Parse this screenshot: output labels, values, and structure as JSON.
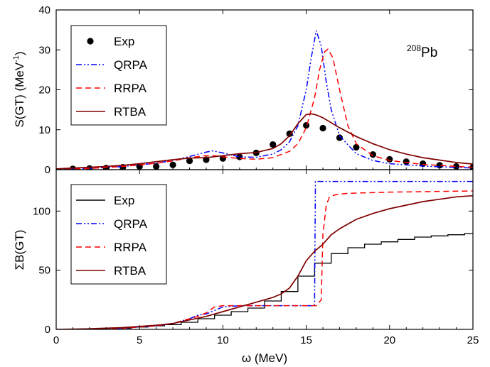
{
  "chart_data": [
    {
      "type": "line",
      "panel": "top",
      "xlim": [
        0,
        25
      ],
      "ylim": [
        0,
        40
      ],
      "x_ticks": [
        0,
        5,
        10,
        15,
        20,
        25
      ],
      "y_ticks": [
        0,
        10,
        20,
        30,
        40
      ],
      "ylabel": "S(GT) (MeV",
      "ylabel_sup": "-1",
      "ylabel_end": ")",
      "annotation": {
        "sup": "208",
        "text": "Pb"
      },
      "legend": {
        "position": "top-left"
      },
      "series": [
        {
          "name": "Exp",
          "style": "markers",
          "color": "#000000",
          "x": [
            1,
            2,
            3,
            4,
            5,
            6,
            7,
            8,
            9,
            10,
            11,
            12,
            13,
            14,
            15,
            16,
            17,
            18,
            19,
            20,
            21,
            22,
            23,
            24,
            25
          ],
          "y": [
            0.2,
            0.3,
            0.4,
            0.6,
            0.8,
            0.8,
            1.2,
            2.2,
            2.5,
            2.8,
            3.2,
            4.2,
            6.3,
            9.0,
            11.1,
            10.4,
            8.0,
            5.6,
            3.8,
            2.6,
            2.0,
            1.5,
            1.1,
            0.8,
            0.6
          ]
        },
        {
          "name": "QRPA",
          "style": "dash-dot-dot",
          "color": "#0000ff",
          "x": [
            0,
            2,
            4,
            6,
            7,
            8,
            9,
            9.4,
            10,
            11,
            12,
            13,
            13.5,
            14,
            14.5,
            15,
            15.3,
            15.6,
            15.9,
            16.2,
            16.5,
            17,
            18,
            19,
            20,
            22,
            25
          ],
          "y": [
            0.1,
            0.3,
            0.8,
            1.6,
            2.3,
            3.3,
            4.4,
            4.7,
            4.2,
            3.2,
            3.1,
            3.9,
            5.0,
            7.0,
            11.0,
            20.0,
            28.0,
            34.8,
            31.0,
            22.0,
            15.0,
            8.5,
            4.0,
            2.3,
            1.5,
            0.9,
            0.4
          ]
        },
        {
          "name": "RRPA",
          "style": "dashed",
          "color": "#ff0000",
          "x": [
            0,
            2,
            4,
            6,
            7,
            8,
            9,
            9.5,
            10,
            11,
            12,
            13,
            14,
            14.5,
            15,
            15.5,
            15.8,
            16.1,
            16.3,
            16.6,
            17,
            17.5,
            18,
            19,
            20,
            22,
            25
          ],
          "y": [
            0.1,
            0.3,
            0.8,
            1.6,
            2.2,
            3.0,
            3.5,
            3.5,
            3.2,
            2.8,
            2.6,
            3.0,
            4.6,
            6.5,
            10.5,
            18.0,
            25.0,
            29.5,
            30.2,
            28.0,
            20.0,
            11.0,
            6.5,
            3.5,
            2.3,
            1.3,
            0.6
          ]
        },
        {
          "name": "RTBA",
          "style": "solid",
          "color": "#800000",
          "x": [
            0,
            1,
            2,
            3,
            4,
            5,
            6,
            7,
            8,
            9,
            10,
            11,
            12,
            13,
            13.5,
            14,
            14.5,
            15,
            15.3,
            15.6,
            16,
            17,
            18,
            19,
            20,
            21,
            22,
            23,
            24,
            25
          ],
          "y": [
            0.2,
            0.4,
            0.6,
            0.8,
            1.1,
            1.5,
            2.0,
            2.5,
            2.9,
            3.0,
            3.5,
            4.0,
            4.3,
            5.3,
            6.5,
            8.5,
            11.5,
            13.8,
            14.0,
            13.7,
            13.0,
            10.5,
            8.3,
            6.5,
            5.0,
            3.9,
            3.0,
            2.4,
            1.8,
            1.4
          ]
        }
      ]
    },
    {
      "type": "line",
      "panel": "bottom",
      "xlim": [
        0,
        25
      ],
      "ylim": [
        0,
        135
      ],
      "x_ticks": [
        0,
        5,
        10,
        15,
        20,
        25
      ],
      "y_ticks": [
        0,
        50,
        100
      ],
      "xlabel": "ω (MeV)",
      "ylabel": "ΣB(GT)",
      "legend": {
        "position": "top-left"
      },
      "series": [
        {
          "name": "Exp",
          "style": "steps",
          "color": "#000000",
          "x": [
            0,
            1.5,
            3,
            4.5,
            5.5,
            6.5,
            7.5,
            8.5,
            9.5,
            10.5,
            11.5,
            12.5,
            13.5,
            14.5,
            15.5,
            16.5,
            17.5,
            18.5,
            19.5,
            20.5,
            21.5,
            22.5,
            23.5,
            24.5,
            25
          ],
          "y": [
            0,
            0.5,
            1,
            2,
            3,
            4,
            6,
            9,
            12,
            15,
            18,
            24,
            32,
            45,
            56,
            64,
            69,
            72,
            74,
            76,
            78,
            79,
            80,
            81,
            81
          ]
        },
        {
          "name": "QRPA",
          "style": "dash-dot-dot",
          "color": "#0000ff",
          "x": [
            0,
            2,
            4,
            6,
            7,
            8,
            8.5,
            9,
            10,
            11,
            12,
            13,
            14,
            15,
            15.5,
            15.55,
            25
          ],
          "y": [
            0,
            0.2,
            1,
            3,
            5,
            9,
            12,
            13,
            19,
            20,
            20,
            20,
            20,
            20,
            20,
            125,
            125
          ]
        },
        {
          "name": "RRPA",
          "style": "dashed",
          "color": "#ff0000",
          "x": [
            0,
            2,
            4,
            6,
            7,
            8,
            8.5,
            9,
            9.5,
            10,
            11,
            12,
            13,
            14,
            15,
            15.6,
            15.9,
            16.0,
            16.2,
            16.4,
            16.8,
            17.5,
            20,
            25
          ],
          "y": [
            0,
            0.2,
            1,
            3,
            5,
            9,
            11,
            14,
            19,
            20,
            20,
            20,
            20,
            20,
            20,
            20,
            25,
            80,
            105,
            112,
            114,
            115,
            116,
            117
          ]
        },
        {
          "name": "RTBA",
          "style": "solid",
          "color": "#800000",
          "x": [
            0,
            2,
            4,
            6,
            7,
            8,
            9,
            10,
            11,
            12,
            13,
            13.5,
            14,
            14.5,
            15,
            15.5,
            16,
            16.5,
            17,
            17.5,
            18,
            19,
            20,
            21,
            22,
            23,
            24,
            25
          ],
          "y": [
            0,
            0.5,
            1.5,
            3.5,
            5,
            8,
            11,
            15,
            19,
            23,
            27,
            30,
            35,
            45,
            58,
            66,
            72,
            80,
            85,
            89,
            93,
            98,
            102,
            105,
            108,
            110,
            112,
            113
          ]
        }
      ]
    }
  ]
}
